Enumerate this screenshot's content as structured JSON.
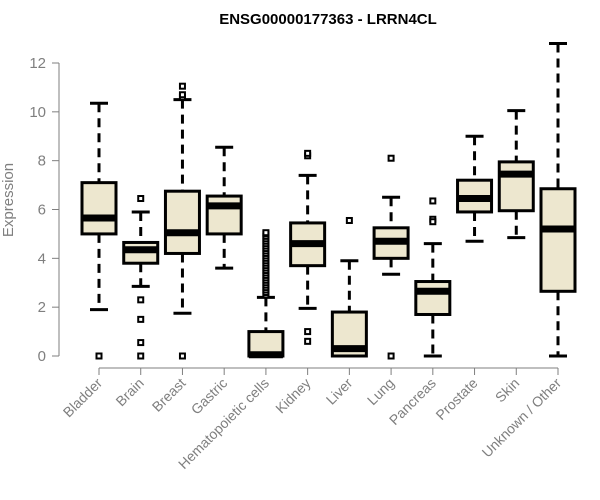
{
  "chart_data": {
    "type": "boxplot",
    "title": "ENSG00000177363 - LRRN4CL",
    "xlabel": "",
    "ylabel": "Expression",
    "ylim": [
      0,
      12
    ],
    "yticks": [
      0,
      2,
      4,
      6,
      8,
      10,
      12
    ],
    "colors": {
      "box_fill": "#ede7cf",
      "stroke": "#000000",
      "axis": "#7f7f7f"
    },
    "categories": [
      "Bladder",
      "Brain",
      "Breast",
      "Gastric",
      "Hematopoietic cells",
      "Kidney",
      "Liver",
      "Lung",
      "Pancreas",
      "Prostate",
      "Skin",
      "Unknown / Other"
    ],
    "series": [
      {
        "name": "Bladder",
        "whisker_low": 1.9,
        "q1": 5.0,
        "median": 5.65,
        "q3": 7.1,
        "whisker_high": 10.35,
        "outliers": [
          0
        ]
      },
      {
        "name": "Brain",
        "whisker_low": 2.85,
        "q1": 3.8,
        "median": 4.35,
        "q3": 4.65,
        "whisker_high": 5.9,
        "outliers": [
          6.45,
          2.3,
          1.5,
          0.55,
          0
        ]
      },
      {
        "name": "Breast",
        "whisker_low": 1.75,
        "q1": 4.2,
        "median": 5.05,
        "q3": 6.75,
        "whisker_high": 10.5,
        "outliers": [
          0,
          10.6,
          10.7,
          11.05
        ]
      },
      {
        "name": "Gastric",
        "whisker_low": 3.6,
        "q1": 5.0,
        "median": 6.15,
        "q3": 6.55,
        "whisker_high": 8.55,
        "outliers": []
      },
      {
        "name": "Hematopoietic cells",
        "whisker_low": 0,
        "q1": 0,
        "median": 0.05,
        "q3": 1.0,
        "whisker_high": 2.4,
        "outliers": [
          2.5,
          2.6,
          2.7,
          2.8,
          2.9,
          3.0,
          3.1,
          3.2,
          3.3,
          3.4,
          3.5,
          3.6,
          3.7,
          3.8,
          3.9,
          4.0,
          4.1,
          4.2,
          4.3,
          4.4,
          4.5,
          4.6,
          4.7,
          4.8,
          4.9,
          5.0,
          5.05
        ]
      },
      {
        "name": "Kidney",
        "whisker_low": 1.95,
        "q1": 3.7,
        "median": 4.6,
        "q3": 5.45,
        "whisker_high": 7.4,
        "outliers": [
          8.2,
          8.3,
          1.0,
          0.6
        ]
      },
      {
        "name": "Liver",
        "whisker_low": 0,
        "q1": 0,
        "median": 0.3,
        "q3": 1.8,
        "whisker_high": 3.9,
        "outliers": [
          5.55
        ]
      },
      {
        "name": "Lung",
        "whisker_low": 3.35,
        "q1": 4.0,
        "median": 4.7,
        "q3": 5.25,
        "whisker_high": 6.5,
        "outliers": [
          8.1,
          0
        ]
      },
      {
        "name": "Pancreas",
        "whisker_low": 0,
        "q1": 1.7,
        "median": 2.65,
        "q3": 3.05,
        "whisker_high": 4.6,
        "outliers": [
          6.35,
          5.6,
          5.5
        ]
      },
      {
        "name": "Prostate",
        "whisker_low": 4.7,
        "q1": 5.9,
        "median": 6.45,
        "q3": 7.2,
        "whisker_high": 9.0,
        "outliers": []
      },
      {
        "name": "Skin",
        "whisker_low": 4.85,
        "q1": 5.95,
        "median": 7.45,
        "q3": 7.95,
        "whisker_high": 10.05,
        "outliers": []
      },
      {
        "name": "Unknown / Other",
        "whisker_low": 0,
        "q1": 2.65,
        "median": 5.2,
        "q3": 6.85,
        "whisker_high": 12.8,
        "outliers": []
      }
    ]
  }
}
